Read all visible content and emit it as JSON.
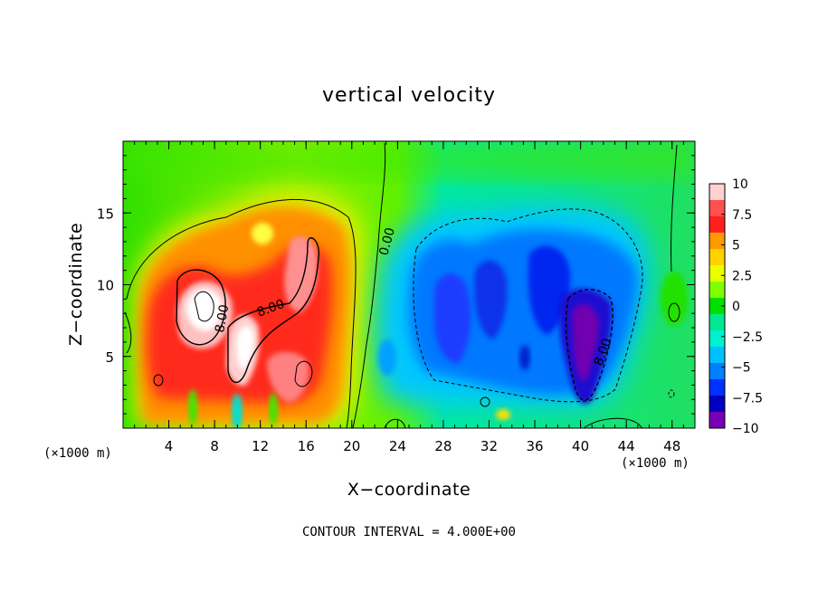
{
  "chart_data": {
    "type": "heatmap",
    "title": "vertical velocity",
    "xlabel": "X−coordinate",
    "ylabel": "Z−coordinate",
    "x_unit_label": "(×1000 m)",
    "footer": "CONTOUR INTERVAL = 4.000E+00",
    "xlim": [
      0,
      50
    ],
    "ylim": [
      0,
      20
    ],
    "x_ticks": [
      4,
      8,
      12,
      16,
      20,
      24,
      28,
      32,
      36,
      40,
      44,
      48
    ],
    "x_tick_labels": [
      "4",
      "8",
      "12",
      "16",
      "20",
      "24",
      "28",
      "32",
      "36",
      "40",
      "44",
      "48"
    ],
    "y_ticks": [
      5,
      10,
      15
    ],
    "y_tick_labels": [
      "5",
      "10",
      "15"
    ],
    "colorbar": {
      "levels": [
        10,
        7.5,
        5,
        2.5,
        0,
        -2.5,
        -5,
        -7.5,
        -10
      ],
      "labels": [
        "10",
        "7.5",
        "5",
        "2.5",
        "0",
        "−2.5",
        "−5",
        "−7.5",
        "−10"
      ],
      "colors": [
        "#ffd0d0",
        "#ff5050",
        "#ff2020",
        "#ff9a00",
        "#ffd200",
        "#e8ff00",
        "#80ff00",
        "#00e000",
        "#00e890",
        "#00f0d0",
        "#00c0ff",
        "#0080ff",
        "#0030ff",
        "#0000c0",
        "#7800b4"
      ]
    },
    "contour_labels": [
      "8.00",
      "8.00",
      "0.00",
      "8.00"
    ],
    "features": [
      {
        "name": "updraft",
        "x": 7.5,
        "z": 10,
        "value": 10
      },
      {
        "name": "updraft",
        "x": 12,
        "z": 5,
        "value": 10
      },
      {
        "name": "updraft",
        "x": 15,
        "z": 10,
        "value": 8
      },
      {
        "name": "downdraft",
        "x": 32,
        "z": 9,
        "value": -7
      },
      {
        "name": "downdraft",
        "x": 40.5,
        "z": 5,
        "value": -10
      },
      {
        "name": "downdraft",
        "x": 28,
        "z": 11,
        "value": -6
      }
    ]
  }
}
